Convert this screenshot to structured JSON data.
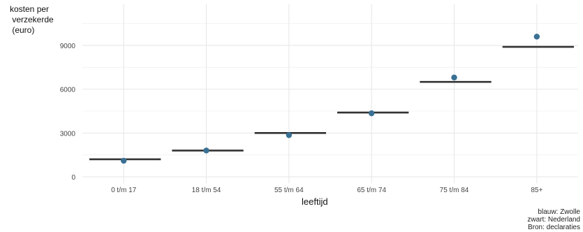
{
  "chart_data": {
    "type": "scatter",
    "ylabel_lines": [
      "kosten per",
      " verzekerde",
      " (euro)"
    ],
    "xlabel": "leeftijd",
    "categories": [
      "0 t/m 17",
      "18 t/m 54",
      "55 t/m 64",
      "65 t/m 74",
      "75 t/m 84",
      "85+"
    ],
    "ylim": [
      0,
      10500
    ],
    "yticks": [
      0,
      3000,
      6000,
      9000
    ],
    "grid": true,
    "series": [
      {
        "name": "Zwolle",
        "marker": "point",
        "color": "#3a7094",
        "values": [
          1100,
          1800,
          2850,
          4350,
          6800,
          9600
        ]
      },
      {
        "name": "Nederland",
        "marker": "hline",
        "color": "#333333",
        "values": [
          1200,
          1800,
          3000,
          4400,
          6500,
          8900
        ]
      }
    ],
    "caption": [
      "blauw: Zwolle",
      "zwart: Nederland",
      "Bron: declaraties"
    ]
  }
}
